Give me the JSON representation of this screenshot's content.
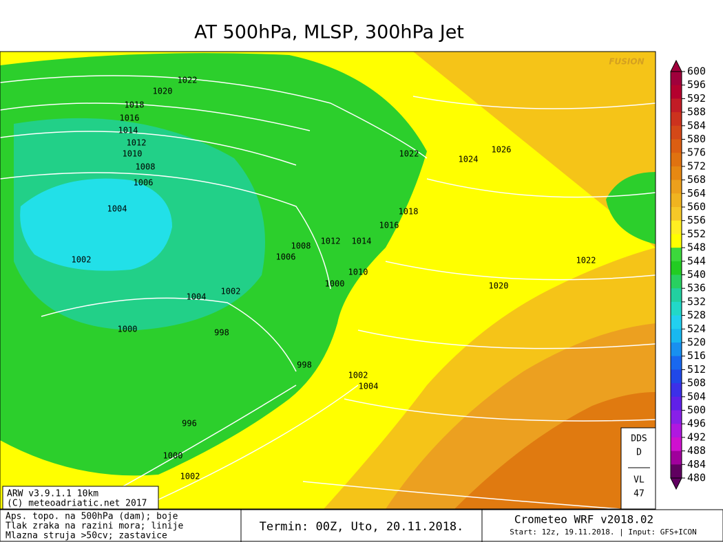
{
  "header": {
    "title": "AT 500hPa, MLSP, 300hPa Jet"
  },
  "map": {
    "watermark": "FUSION",
    "isobar_labels": [
      1022,
      1020,
      1018,
      1016,
      1014,
      1012,
      1010,
      1008,
      1006,
      1004,
      1002,
      1004,
      1002,
      1000,
      998,
      998,
      996,
      1000,
      1002,
      1022,
      1024,
      1026,
      1018,
      1016,
      1014,
      1012,
      1008,
      1006,
      1010,
      1000,
      1002,
      1004,
      1020,
      1022
    ]
  },
  "legend": {
    "labels": [
      600,
      596,
      592,
      588,
      584,
      580,
      576,
      572,
      568,
      564,
      560,
      556,
      552,
      548,
      544,
      540,
      536,
      532,
      528,
      524,
      520,
      516,
      512,
      508,
      504,
      500,
      496,
      492,
      488,
      484,
      480
    ],
    "colors": [
      "#a0003c",
      "#b4002e",
      "#c21c26",
      "#cc321e",
      "#d44818",
      "#dc5e12",
      "#e07210",
      "#e68812",
      "#eca01c",
      "#f0b420",
      "#f6c828",
      "#ffee22",
      "#ffff00",
      "#3cd83c",
      "#22cc22",
      "#28d060",
      "#22d0a0",
      "#22d8c8",
      "#22d0f0",
      "#18b8f0",
      "#1890f0",
      "#1868f0",
      "#2048e8",
      "#3c30e8",
      "#6020e8",
      "#8820e8",
      "#b018e0",
      "#d010d0",
      "#a0009c",
      "#600060"
    ]
  },
  "info_box": {
    "line1": "DDS",
    "line2": "D",
    "line3": "VL",
    "line4": "47"
  },
  "credits": {
    "model": "ARW v3.9.1.1 10km",
    "copyright": "(C) meteoadriatic.net 2017"
  },
  "footer": {
    "desc1": "Aps. topo. na 500hPa (dam); boje",
    "desc2": "Tlak zraka na razini mora; linije",
    "desc3": "Mlazna struja >50cv; zastavice",
    "run": "Termin: 00Z, Uto, 20.11.2018.",
    "model": "Crometeo WRF v2018.02",
    "start": "Start: 12z, 19.11.2018. | Input: GFS+ICON"
  }
}
